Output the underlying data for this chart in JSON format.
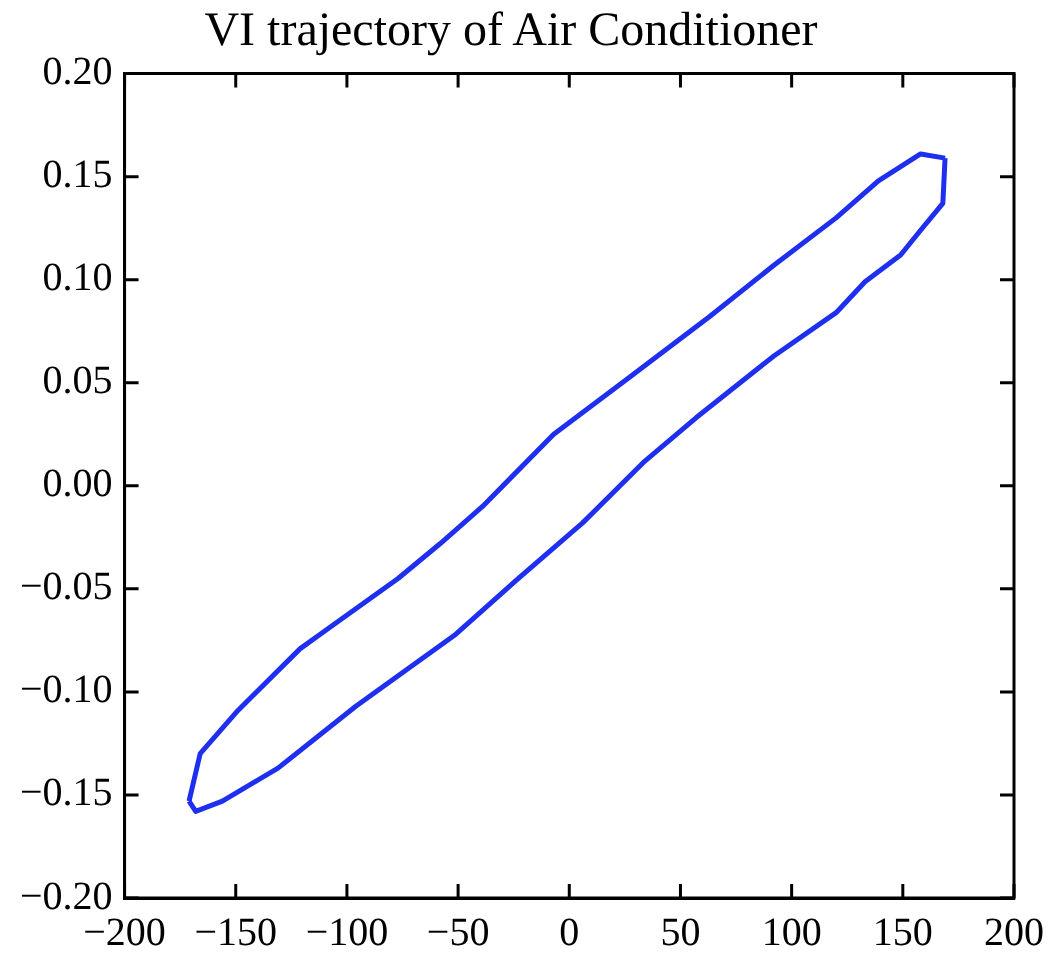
{
  "chart_data": {
    "type": "line",
    "title": "VI trajectory of Air Conditioner",
    "series": [
      {
        "color": "#1f2ff0",
        "x": [
          -171,
          -166,
          -149,
          -121,
          -112,
          -77,
          -58,
          -39,
          -7,
          25,
          63,
          92,
          120,
          139,
          158,
          169
        ],
        "values": [
          -0.153,
          -0.13,
          -0.109,
          -0.079,
          -0.072,
          -0.045,
          -0.028,
          -0.01,
          0.025,
          0.051,
          0.082,
          0.107,
          0.13,
          0.148,
          0.161,
          0.159
        ]
      },
      {
        "color": "#1f2ff0",
        "x": [
          -171,
          -168,
          -156,
          -131,
          -96,
          -51,
          -23,
          6,
          34,
          57,
          92,
          120,
          133,
          149,
          158,
          168,
          169
        ],
        "values": [
          -0.153,
          -0.158,
          -0.153,
          -0.137,
          -0.107,
          -0.072,
          -0.045,
          -0.018,
          0.012,
          0.033,
          0.063,
          0.084,
          0.099,
          0.112,
          0.124,
          0.137,
          0.159
        ]
      }
    ],
    "xlim": [
      -200,
      200
    ],
    "xticks": [
      {
        "value": -200,
        "label": "−200"
      },
      {
        "value": -150,
        "label": "−150"
      },
      {
        "value": -100,
        "label": "−100"
      },
      {
        "value": -50,
        "label": "−50"
      },
      0,
      50,
      100,
      150,
      200
    ],
    "ylim": [
      -0.2,
      0.2
    ],
    "yticks": [
      {
        "value": -0.2,
        "label": "−0.20"
      },
      {
        "value": -0.15,
        "label": "−0.15"
      },
      {
        "value": -0.1,
        "label": "−0.10"
      },
      {
        "value": -0.05,
        "label": "−0.05"
      },
      {
        "value": 0,
        "label": "0.00"
      },
      {
        "value": 0.05,
        "label": "0.05"
      },
      {
        "value": 0.1,
        "label": "0.10"
      },
      {
        "value": 0.15,
        "label": "0.15"
      },
      {
        "value": 0.2,
        "label": "0.20"
      }
    ],
    "grid": false,
    "legend": false,
    "marker": "none",
    "line_style": "solid"
  }
}
